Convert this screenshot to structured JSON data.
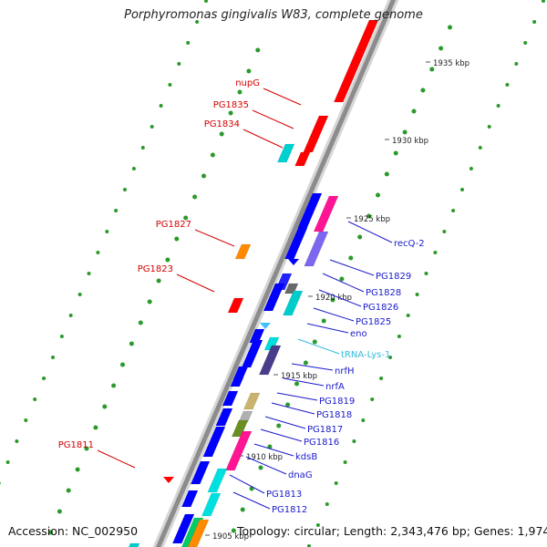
{
  "title": "Porphyromonas gingivalis W83, complete genome",
  "accession": "Accession: NC_002950",
  "topology": "Topology: circular; Length: 2,343,476 bp; Genes: 1,974",
  "colors": {
    "backbone": "#8c8c8c",
    "tick_dots": "#2a9a2a",
    "reverse_label": "#d40000",
    "forward_label": "#1a1acc",
    "trna_label": "#33bbdd"
  },
  "scale_labels": [
    {
      "text": "1935 kbp",
      "kbp": 1935
    },
    {
      "text": "1930 kbp",
      "kbp": 1930
    },
    {
      "text": "1925 kbp",
      "kbp": 1925
    },
    {
      "text": "1920 kbp",
      "kbp": 1920
    },
    {
      "text": "1915 kbp",
      "kbp": 1915
    },
    {
      "text": "1910 kbp",
      "kbp": 1910
    },
    {
      "text": "1905 kbp",
      "kbp": 1905
    }
  ],
  "reverse_labels": [
    "nupG",
    "PG1835",
    "PG1834",
    "PG1827",
    "PG1823",
    "PG1811"
  ],
  "forward_labels": [
    "recQ-2",
    "PG1829",
    "PG1828",
    "PG1826",
    "PG1825",
    "eno",
    "tRNA-Lys-1",
    "nrfH",
    "nrfA",
    "PG1819",
    "PG1818",
    "PG1817",
    "PG1816",
    "kdsB",
    "dnaG",
    "PG1813",
    "PG1812"
  ]
}
